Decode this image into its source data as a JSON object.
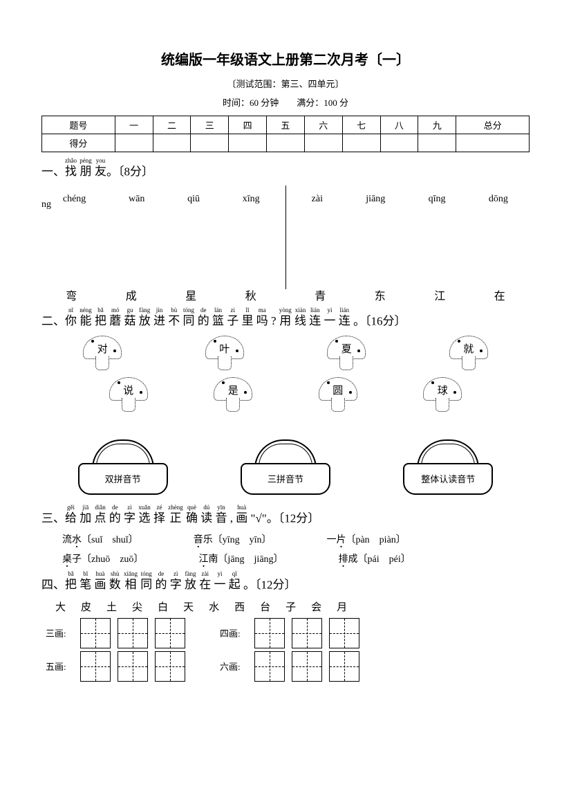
{
  "title": "统编版一年级语文上册第二次月考〔一〕",
  "subtitle": "〔测试范围：第三、四单元〕",
  "timescore": "时间：60 分钟　　满分：100 分",
  "score_table": {
    "headers": [
      "题号",
      "一",
      "二",
      "三",
      "四",
      "五",
      "六",
      "七",
      "八",
      "九",
      "总分"
    ],
    "row_label": "得分"
  },
  "q1": {
    "ruby": [
      {
        "t": "zhǎo",
        "b": "找"
      },
      {
        "t": "péng",
        "b": "朋"
      },
      {
        "t": "you",
        "b": "友"
      }
    ],
    "suffix": "。〔8分〕",
    "left_pinyin": [
      "chéng",
      "wān",
      "qiū",
      "xīng"
    ],
    "right_pinyin": [
      "zài",
      "jiāng",
      "qīng",
      "dōng"
    ],
    "tail": "ng",
    "left_chars": [
      "弯",
      "成",
      "星",
      "秋"
    ],
    "right_chars": [
      "青",
      "东",
      "江",
      "在"
    ]
  },
  "q2": {
    "prefix": "二、",
    "ruby": [
      {
        "t": "nǐ",
        "b": "你"
      },
      {
        "t": "néng",
        "b": "能"
      },
      {
        "t": "bǎ",
        "b": "把"
      },
      {
        "t": "mó",
        "b": "蘑"
      },
      {
        "t": "gu",
        "b": "菇"
      },
      {
        "t": "fàng",
        "b": "放"
      },
      {
        "t": "jìn",
        "b": "进"
      },
      {
        "t": "bù",
        "b": "不"
      },
      {
        "t": "tóng",
        "b": "同"
      },
      {
        "t": "de",
        "b": "的"
      },
      {
        "t": "lán",
        "b": "篮"
      },
      {
        "t": "zi",
        "b": "子"
      },
      {
        "t": "lǐ",
        "b": "里"
      },
      {
        "t": "ma",
        "b": "吗"
      },
      {
        "t": "",
        "b": "?"
      },
      {
        "t": "yòng",
        "b": "用"
      },
      {
        "t": "xiàn",
        "b": "线"
      },
      {
        "t": "lián",
        "b": "连"
      },
      {
        "t": "yi",
        "b": "一"
      },
      {
        "t": "lián",
        "b": "连"
      }
    ],
    "suffix": "。〔16分〕",
    "mushrooms_row1": [
      "对",
      "叶",
      "夏",
      "就"
    ],
    "mushrooms_row2": [
      "说",
      "是",
      "圆",
      "球"
    ],
    "baskets": [
      "双拼音节",
      "三拼音节",
      "整体认读音节"
    ]
  },
  "q3": {
    "prefix": "三、",
    "ruby": [
      {
        "t": "gěi",
        "b": "给"
      },
      {
        "t": "jiā",
        "b": "加"
      },
      {
        "t": "diǎn",
        "b": "点"
      },
      {
        "t": "de",
        "b": "的"
      },
      {
        "t": "zì",
        "b": "字"
      },
      {
        "t": "xuǎn",
        "b": "选"
      },
      {
        "t": "zé",
        "b": "择"
      },
      {
        "t": "zhèng",
        "b": "正"
      },
      {
        "t": "què",
        "b": "确"
      },
      {
        "t": "dú",
        "b": "读"
      },
      {
        "t": "yīn",
        "b": "音"
      },
      {
        "t": "",
        "b": ","
      },
      {
        "t": "huà",
        "b": "画"
      }
    ],
    "suffix": "\"√\"。〔12分〕",
    "items": [
      [
        {
          "pre": "流",
          "dot": "水",
          "opts": "〔suǐ　shuǐ〕"
        },
        {
          "pre": "",
          "dot": "音",
          "post": "乐",
          "opts": "〔yīng　yīn〕"
        },
        {
          "pre": "一",
          "dot": "片",
          "opts": "〔pàn　piàn〕"
        }
      ],
      [
        {
          "pre": "",
          "dot": "桌",
          "post": "子",
          "opts": "〔zhuō　zuō〕"
        },
        {
          "pre": "",
          "dot": "江",
          "post": "南",
          "opts": "〔jāng　jiāng〕"
        },
        {
          "pre": "",
          "dot": "排",
          "post": "成",
          "opts": "〔pái　péi〕"
        }
      ]
    ]
  },
  "q4": {
    "prefix": "四、",
    "ruby": [
      {
        "t": "bǎ",
        "b": "把"
      },
      {
        "t": "bǐ",
        "b": "笔"
      },
      {
        "t": "huà",
        "b": "画"
      },
      {
        "t": "shù",
        "b": "数"
      },
      {
        "t": "xiāng",
        "b": "相"
      },
      {
        "t": "tóng",
        "b": "同"
      },
      {
        "t": "de",
        "b": "的"
      },
      {
        "t": "zì",
        "b": "字"
      },
      {
        "t": "fàng",
        "b": "放"
      },
      {
        "t": "zài",
        "b": "在"
      },
      {
        "t": "yì",
        "b": "一"
      },
      {
        "t": "qǐ",
        "b": "起"
      }
    ],
    "suffix": "。〔12分〕",
    "chars": [
      "大",
      "皮",
      "土",
      "尖",
      "白",
      "天",
      "水",
      "西",
      "台",
      "子",
      "会",
      "月"
    ],
    "rows": [
      {
        "labelL": "三画:",
        "boxesL": 3,
        "labelR": "四画:",
        "boxesR": 3
      },
      {
        "labelL": "五画:",
        "boxesL": 3,
        "labelR": "六画:",
        "boxesR": 3
      }
    ]
  },
  "colors": {
    "text": "#000000",
    "bg": "#ffffff"
  }
}
